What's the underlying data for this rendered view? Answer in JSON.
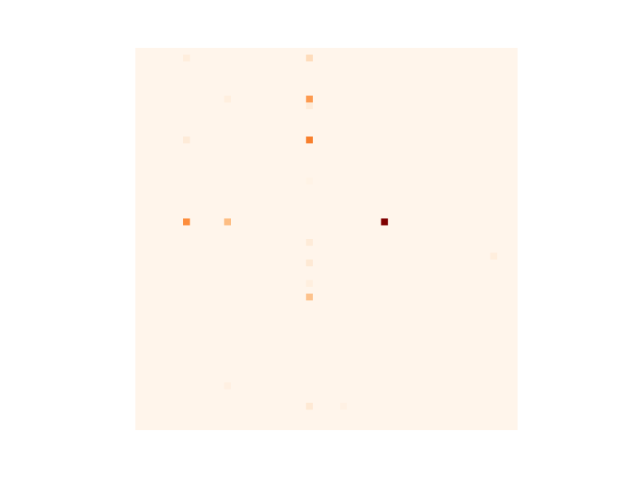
{
  "chart_data": {
    "type": "heatmap",
    "title": "",
    "xlabel": "",
    "ylabel": "",
    "grid": false,
    "axes_visible": false,
    "colormap": "Oranges",
    "background_color": "#fff5eb",
    "n_rows": 56,
    "n_cols": 56,
    "vmin": 0,
    "vmax": 1,
    "cells": [
      {
        "row": 1,
        "col": 7,
        "value": 0.06
      },
      {
        "row": 1,
        "col": 25,
        "value": 0.18
      },
      {
        "row": 7,
        "col": 13,
        "value": 0.05
      },
      {
        "row": 7,
        "col": 25,
        "value": 0.45
      },
      {
        "row": 8,
        "col": 25,
        "value": 0.08
      },
      {
        "row": 13,
        "col": 7,
        "value": 0.08
      },
      {
        "row": 13,
        "col": 25,
        "value": 0.55
      },
      {
        "row": 19,
        "col": 25,
        "value": 0.02
      },
      {
        "row": 25,
        "col": 7,
        "value": 0.5
      },
      {
        "row": 25,
        "col": 13,
        "value": 0.32
      },
      {
        "row": 25,
        "col": 36,
        "value": 1.0
      },
      {
        "row": 28,
        "col": 25,
        "value": 0.08
      },
      {
        "row": 30,
        "col": 52,
        "value": 0.06
      },
      {
        "row": 31,
        "col": 25,
        "value": 0.1
      },
      {
        "row": 34,
        "col": 25,
        "value": 0.05
      },
      {
        "row": 36,
        "col": 25,
        "value": 0.3
      },
      {
        "row": 49,
        "col": 13,
        "value": 0.04
      },
      {
        "row": 52,
        "col": 25,
        "value": 0.1
      },
      {
        "row": 52,
        "col": 30,
        "value": 0.03
      }
    ]
  }
}
